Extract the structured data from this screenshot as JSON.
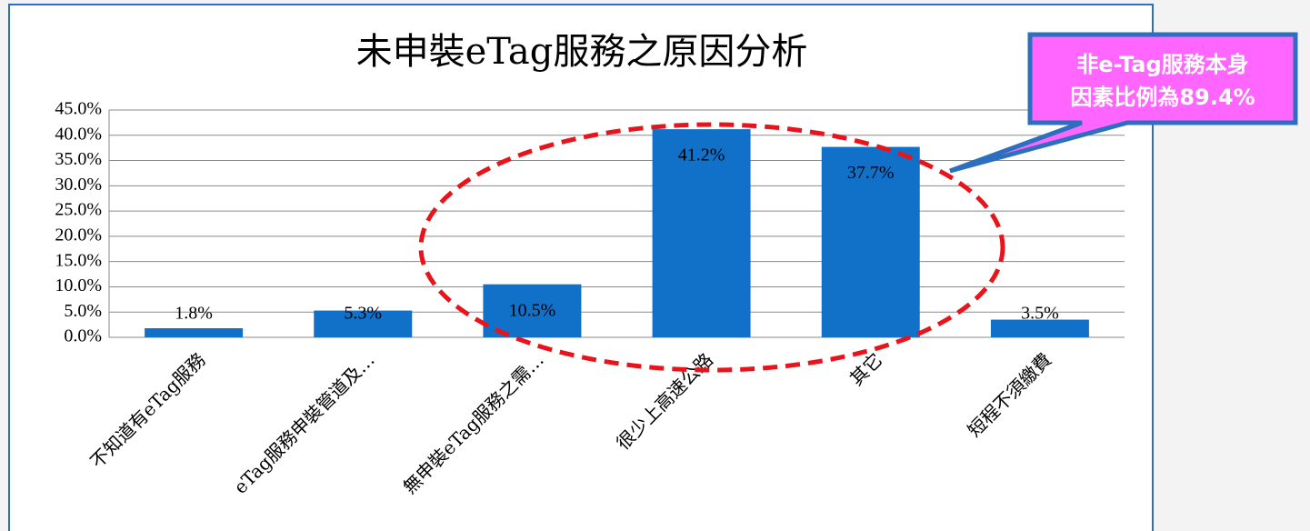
{
  "chart_data": {
    "type": "bar",
    "title": "未申裝eTag服務之原因分析",
    "categories": [
      "不知道有eTag服務",
      "eTag服務申裝管道及…",
      "無申裝eTag服務之需…",
      "很少上高速公路",
      "其它",
      "短程不須繳費"
    ],
    "values": [
      1.8,
      5.3,
      10.5,
      41.2,
      37.7,
      3.5
    ],
    "value_labels": [
      "1.8%",
      "5.3%",
      "10.5%",
      "41.2%",
      "37.7%",
      "3.5%"
    ],
    "color": "#1170c8",
    "ylim": [
      0,
      45
    ],
    "yticks": [
      {
        "value": 0,
        "label": "0.0%"
      },
      {
        "value": 5,
        "label": "5.0%"
      },
      {
        "value": 10,
        "label": "10.0%"
      },
      {
        "value": 15,
        "label": "15.0%"
      },
      {
        "value": 20,
        "label": "20.0%"
      },
      {
        "value": 25,
        "label": "25.0%"
      },
      {
        "value": 30,
        "label": "30.0%"
      },
      {
        "value": 35,
        "label": "35.0%"
      },
      {
        "value": 40,
        "label": "40.0%"
      },
      {
        "value": 45,
        "label": "45.0%"
      }
    ],
    "grid": true,
    "annotation": [
      "非e-Tag服務本身",
      "因素比例為89.4%"
    ]
  }
}
